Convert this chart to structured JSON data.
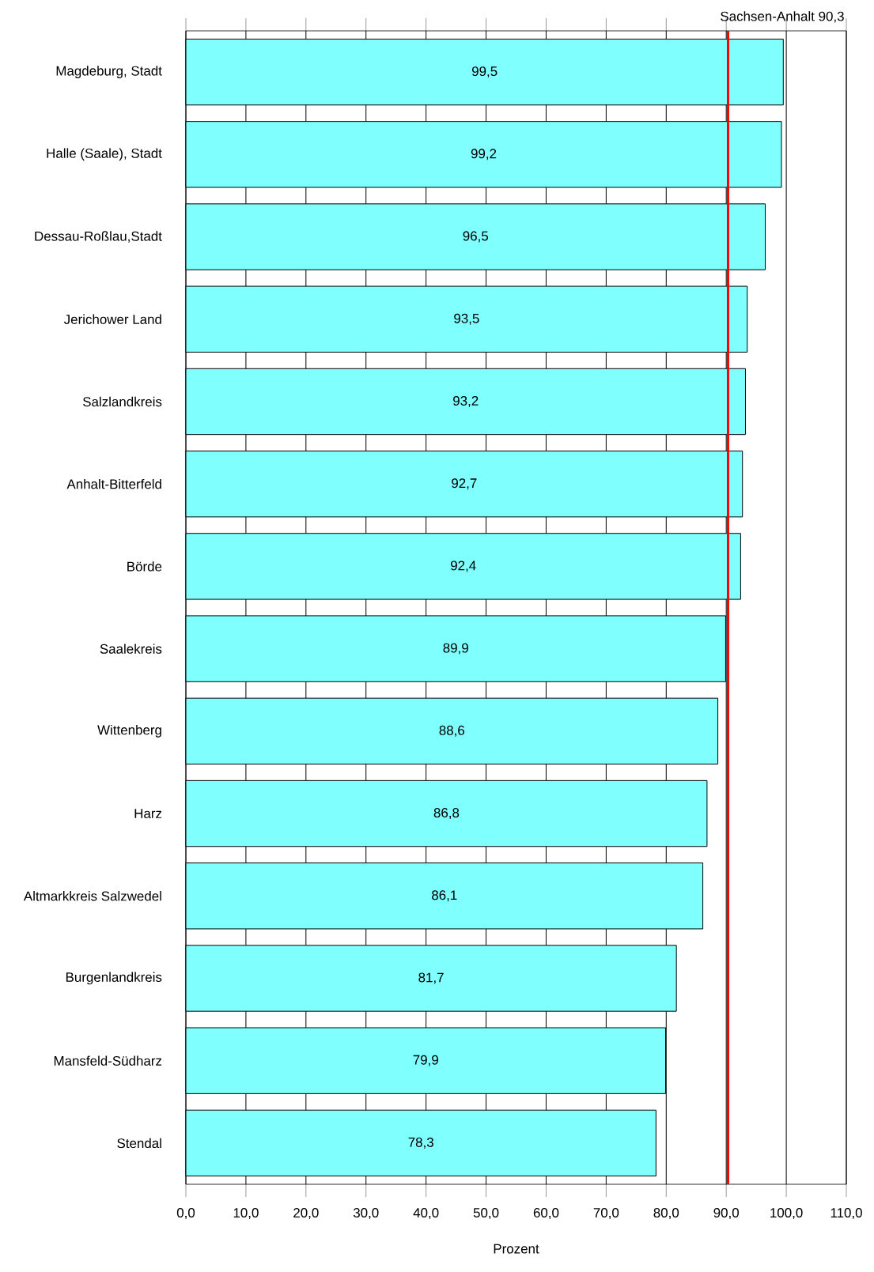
{
  "chart_data": {
    "type": "bar",
    "orientation": "horizontal",
    "xlabel": "Prozent",
    "categories": [
      "Magdeburg, Stadt",
      "Halle (Saale), Stadt",
      "Dessau-Roßlau,Stadt",
      "Jerichower Land",
      "Salzlandkreis",
      "Anhalt-Bitterfeld",
      "Börde",
      "Saalekreis",
      "Wittenberg",
      "Harz",
      "Altmarkkreis Salzwedel",
      "Burgenlandkreis",
      "Mansfeld-Südharz",
      "Stendal"
    ],
    "values": [
      99.5,
      99.2,
      96.5,
      93.5,
      93.2,
      92.7,
      92.4,
      89.9,
      88.6,
      86.8,
      86.1,
      81.7,
      79.9,
      78.3
    ],
    "value_labels": [
      "99,5",
      "99,2",
      "96,5",
      "93,5",
      "93,2",
      "92,7",
      "92,4",
      "89,9",
      "88,6",
      "86,8",
      "86,1",
      "81,7",
      "79,9",
      "78,3"
    ],
    "color": "#80ffff",
    "xlim": [
      0,
      110
    ],
    "xticks": [
      {
        "value": 0,
        "label": "0,0"
      },
      {
        "value": 10,
        "label": "10,0"
      },
      {
        "value": 20,
        "label": "20,0"
      },
      {
        "value": 30,
        "label": "30,0"
      },
      {
        "value": 40,
        "label": "40,0"
      },
      {
        "value": 50,
        "label": "50,0"
      },
      {
        "value": 60,
        "label": "60,0"
      },
      {
        "value": 70,
        "label": "70,0"
      },
      {
        "value": 80,
        "label": "80,0"
      },
      {
        "value": 90,
        "label": "90,0"
      },
      {
        "value": 100,
        "label": "100,0"
      },
      {
        "value": 110,
        "label": "110,0"
      }
    ],
    "grid": "x",
    "ref_lines": [
      {
        "axis": "x",
        "value": 90.3,
        "label": "Sachsen-Anhalt  90,3",
        "color": "#ff0000"
      }
    ]
  }
}
